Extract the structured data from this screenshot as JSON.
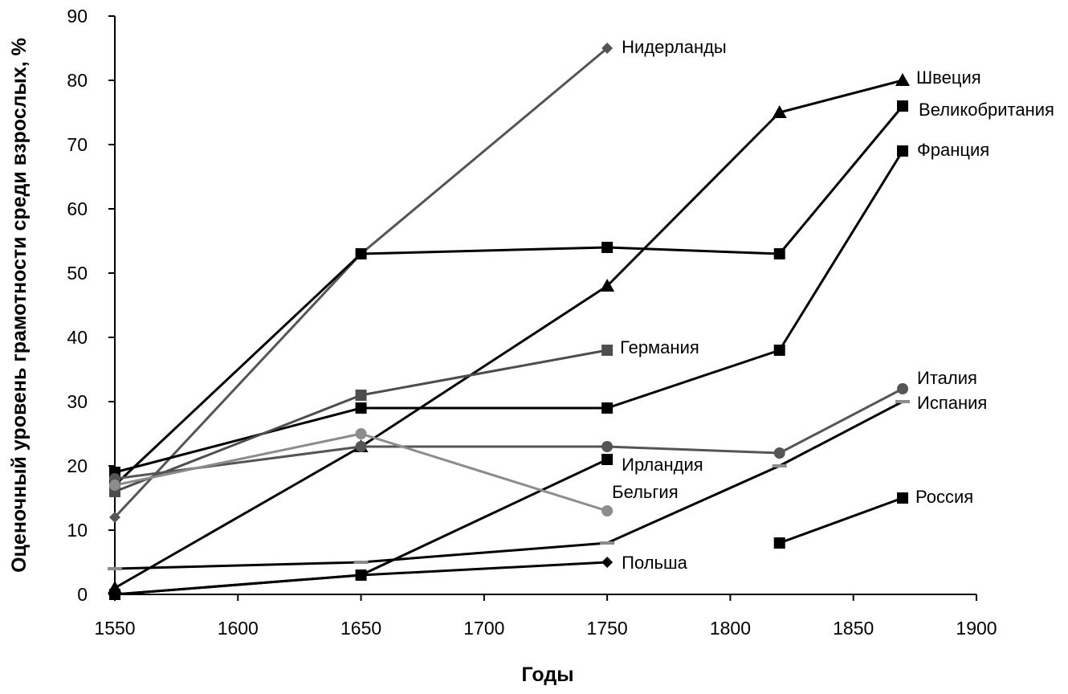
{
  "chart_data": {
    "type": "line",
    "xlabel": "Годы",
    "ylabel": "Оценочный уровень грамотности среди взрослых, %",
    "xlim": [
      1550,
      1900
    ],
    "ylim": [
      0,
      90
    ],
    "x_ticks": [
      1550,
      1600,
      1650,
      1700,
      1750,
      1800,
      1850,
      1900
    ],
    "y_ticks": [
      0,
      10,
      20,
      30,
      40,
      50,
      60,
      70,
      80,
      90
    ],
    "grid": false,
    "legend": "none",
    "series": [
      {
        "name": "Нидерланды",
        "color": "#555555",
        "marker": "diamond",
        "points": [
          {
            "x": 1550,
            "y": 12
          },
          {
            "x": 1650,
            "y": 53
          },
          {
            "x": 1750,
            "y": 85
          }
        ]
      },
      {
        "name": "Швеция",
        "color": "#000000",
        "marker": "triangle",
        "points": [
          {
            "x": 1550,
            "y": 1
          },
          {
            "x": 1650,
            "y": 23
          },
          {
            "x": 1750,
            "y": 48
          },
          {
            "x": 1820,
            "y": 75
          },
          {
            "x": 1870,
            "y": 80
          }
        ]
      },
      {
        "name": "Великобритания",
        "color": "#000000",
        "marker": "square",
        "points": [
          {
            "x": 1550,
            "y": 17
          },
          {
            "x": 1650,
            "y": 53
          },
          {
            "x": 1750,
            "y": 54
          },
          {
            "x": 1820,
            "y": 53
          },
          {
            "x": 1870,
            "y": 76
          }
        ]
      },
      {
        "name": "Франция",
        "color": "#000000",
        "marker": "square",
        "points": [
          {
            "x": 1550,
            "y": 19
          },
          {
            "x": 1650,
            "y": 29
          },
          {
            "x": 1750,
            "y": 29
          },
          {
            "x": 1820,
            "y": 38
          },
          {
            "x": 1870,
            "y": 69
          }
        ]
      },
      {
        "name": "Германия",
        "color": "#4d4d4d",
        "marker": "square",
        "points": [
          {
            "x": 1550,
            "y": 16
          },
          {
            "x": 1650,
            "y": 31
          },
          {
            "x": 1750,
            "y": 38
          }
        ]
      },
      {
        "name": "Италия",
        "color": "#555555",
        "marker": "circle",
        "points": [
          {
            "x": 1550,
            "y": 18
          },
          {
            "x": 1650,
            "y": 23
          },
          {
            "x": 1750,
            "y": 23
          },
          {
            "x": 1820,
            "y": 22
          },
          {
            "x": 1870,
            "y": 32
          }
        ]
      },
      {
        "name": "Испания",
        "color": "#000000",
        "marker": "dash",
        "points": [
          {
            "x": 1550,
            "y": 4
          },
          {
            "x": 1650,
            "y": 5
          },
          {
            "x": 1750,
            "y": 8
          },
          {
            "x": 1820,
            "y": 20
          },
          {
            "x": 1870,
            "y": 30
          }
        ]
      },
      {
        "name": "Ирландия",
        "color": "#000000",
        "marker": "square",
        "points": [
          {
            "x": 1550,
            "y": 0
          },
          {
            "x": 1650,
            "y": 3
          },
          {
            "x": 1750,
            "y": 21
          }
        ]
      },
      {
        "name": "Бельгия",
        "color": "#8c8c8c",
        "marker": "circle",
        "points": [
          {
            "x": 1550,
            "y": 17
          },
          {
            "x": 1650,
            "y": 25
          },
          {
            "x": 1750,
            "y": 13
          }
        ]
      },
      {
        "name": "Польша",
        "color": "#000000",
        "marker": "diamond",
        "points": [
          {
            "x": 1550,
            "y": 0
          },
          {
            "x": 1650,
            "y": 3
          },
          {
            "x": 1750,
            "y": 5
          }
        ]
      },
      {
        "name": "Россия",
        "color": "#000000",
        "marker": "square",
        "points": [
          {
            "x": 1820,
            "y": 8
          },
          {
            "x": 1870,
            "y": 15
          }
        ]
      }
    ]
  }
}
